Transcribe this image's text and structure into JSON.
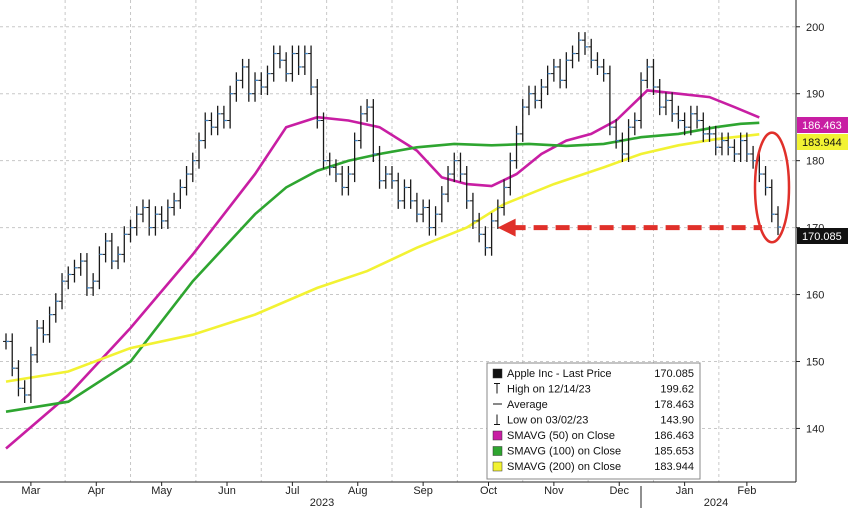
{
  "chart_data": {
    "type": "line",
    "title": "",
    "ylim": [
      132,
      204
    ],
    "y_ticks": [
      140,
      150,
      160,
      170,
      180,
      190,
      200
    ],
    "x_tick_labels": [
      "Mar",
      "Apr",
      "May",
      "Jun",
      "Jul",
      "Aug",
      "Sep",
      "Oct",
      "Nov",
      "Dec",
      "Jan",
      "Feb"
    ],
    "x_year_labels": [
      "2023",
      "2024"
    ],
    "grid": true,
    "legend_position": "bottom-center",
    "series": [
      {
        "name": "Apple Inc - Last Price",
        "color": "#111111",
        "style": "bar",
        "points": [
          [
            0,
            153
          ],
          [
            1,
            149
          ],
          [
            2,
            146
          ],
          [
            3,
            145
          ],
          [
            4,
            151
          ],
          [
            5,
            155
          ],
          [
            6,
            154
          ],
          [
            7,
            157
          ],
          [
            8,
            159
          ],
          [
            9,
            162
          ],
          [
            10,
            163
          ],
          [
            11,
            164
          ],
          [
            12,
            165
          ],
          [
            13,
            161
          ],
          [
            14,
            162
          ],
          [
            15,
            166
          ],
          [
            16,
            168
          ],
          [
            17,
            165
          ],
          [
            18,
            166
          ],
          [
            19,
            169
          ],
          [
            20,
            170
          ],
          [
            21,
            172
          ],
          [
            22,
            173
          ],
          [
            23,
            170
          ],
          [
            24,
            172
          ],
          [
            25,
            171
          ],
          [
            26,
            173
          ],
          [
            27,
            174
          ],
          [
            28,
            176
          ],
          [
            29,
            178
          ],
          [
            30,
            180
          ],
          [
            31,
            183
          ],
          [
            32,
            186
          ],
          [
            33,
            185
          ],
          [
            34,
            187
          ],
          [
            35,
            186
          ],
          [
            36,
            190
          ],
          [
            37,
            192
          ],
          [
            38,
            194
          ],
          [
            39,
            190
          ],
          [
            40,
            192
          ],
          [
            41,
            191
          ],
          [
            42,
            193
          ],
          [
            43,
            196
          ],
          [
            44,
            195
          ],
          [
            45,
            193
          ],
          [
            46,
            196
          ],
          [
            47,
            194
          ],
          [
            48,
            196
          ],
          [
            49,
            191
          ],
          [
            50,
            186
          ],
          [
            51,
            180
          ],
          [
            52,
            179
          ],
          [
            53,
            178
          ],
          [
            54,
            176
          ],
          [
            55,
            178
          ],
          [
            56,
            183
          ],
          [
            57,
            187
          ],
          [
            58,
            188
          ],
          [
            59,
            181
          ],
          [
            60,
            177
          ],
          [
            61,
            178
          ],
          [
            62,
            177
          ],
          [
            63,
            174
          ],
          [
            64,
            176
          ],
          [
            65,
            174
          ],
          [
            66,
            172
          ],
          [
            67,
            173
          ],
          [
            68,
            170
          ],
          [
            69,
            172
          ],
          [
            70,
            175
          ],
          [
            71,
            178
          ],
          [
            72,
            180
          ],
          [
            73,
            178
          ],
          [
            74,
            174
          ],
          [
            75,
            171
          ],
          [
            76,
            169
          ],
          [
            77,
            167
          ],
          [
            78,
            171
          ],
          [
            79,
            173
          ],
          [
            80,
            176
          ],
          [
            81,
            180
          ],
          [
            82,
            184
          ],
          [
            83,
            188
          ],
          [
            84,
            190
          ],
          [
            85,
            189
          ],
          [
            86,
            191
          ],
          [
            87,
            193
          ],
          [
            88,
            194
          ],
          [
            89,
            192
          ],
          [
            90,
            195
          ],
          [
            91,
            196
          ],
          [
            92,
            198
          ],
          [
            93,
            197
          ],
          [
            94,
            195
          ],
          [
            95,
            194
          ],
          [
            96,
            193
          ],
          [
            97,
            185
          ],
          [
            98,
            183
          ],
          [
            99,
            181
          ],
          [
            100,
            185
          ],
          [
            101,
            186
          ],
          [
            102,
            192
          ],
          [
            103,
            194
          ],
          [
            104,
            191
          ],
          [
            105,
            188
          ],
          [
            106,
            189
          ],
          [
            107,
            187
          ],
          [
            108,
            186
          ],
          [
            109,
            185
          ],
          [
            110,
            187
          ],
          [
            111,
            186
          ],
          [
            112,
            184
          ],
          [
            113,
            184
          ],
          [
            114,
            182
          ],
          [
            115,
            183
          ],
          [
            116,
            182
          ],
          [
            117,
            181
          ],
          [
            118,
            183
          ],
          [
            119,
            181
          ],
          [
            120,
            180
          ],
          [
            121,
            178
          ],
          [
            122,
            176
          ],
          [
            123,
            172
          ],
          [
            124,
            170.085
          ]
        ]
      },
      {
        "name": "SMAVG (50) on Close",
        "color": "#c81ea3",
        "points": [
          [
            0,
            137
          ],
          [
            10,
            145
          ],
          [
            20,
            155
          ],
          [
            30,
            166
          ],
          [
            40,
            178
          ],
          [
            45,
            185
          ],
          [
            50,
            186.5
          ],
          [
            55,
            186
          ],
          [
            60,
            185
          ],
          [
            66,
            181.5
          ],
          [
            70,
            177.5
          ],
          [
            74,
            176.5
          ],
          [
            78,
            176.2
          ],
          [
            82,
            178
          ],
          [
            86,
            181
          ],
          [
            90,
            183
          ],
          [
            94,
            184
          ],
          [
            98,
            186
          ],
          [
            103,
            190.5
          ],
          [
            108,
            190
          ],
          [
            113,
            189.5
          ],
          [
            117,
            188
          ],
          [
            121,
            186.463
          ]
        ]
      },
      {
        "name": "SMAVG (100) on Close",
        "color": "#2ea530",
        "points": [
          [
            0,
            142.5
          ],
          [
            10,
            144
          ],
          [
            20,
            150
          ],
          [
            30,
            162
          ],
          [
            40,
            172
          ],
          [
            45,
            176
          ],
          [
            50,
            178.5
          ],
          [
            55,
            180
          ],
          [
            60,
            181
          ],
          [
            66,
            182
          ],
          [
            72,
            182.5
          ],
          [
            78,
            182.3
          ],
          [
            84,
            182.5
          ],
          [
            90,
            182.2
          ],
          [
            96,
            182.5
          ],
          [
            102,
            183.5
          ],
          [
            108,
            184
          ],
          [
            114,
            185
          ],
          [
            118,
            185.5
          ],
          [
            121,
            185.653
          ]
        ]
      },
      {
        "name": "SMAVG (200) on Close",
        "color": "#f2f233",
        "points": [
          [
            0,
            147
          ],
          [
            10,
            148.5
          ],
          [
            20,
            152
          ],
          [
            30,
            154
          ],
          [
            40,
            157
          ],
          [
            50,
            161
          ],
          [
            58,
            163.5
          ],
          [
            66,
            167
          ],
          [
            74,
            170
          ],
          [
            80,
            173.5
          ],
          [
            88,
            176.5
          ],
          [
            96,
            179
          ],
          [
            102,
            181
          ],
          [
            108,
            182.3
          ],
          [
            114,
            183.2
          ],
          [
            121,
            183.944
          ]
        ]
      }
    ],
    "summary_stats": {
      "high": {
        "label": "High on 12/14/23",
        "value": "199.62"
      },
      "average": {
        "label": "Average",
        "value": "178.463"
      },
      "low": {
        "label": "Low on 03/02/23",
        "value": "143.90"
      }
    },
    "last_value_badges": [
      {
        "value": "186.463",
        "bg": "#c81ea3",
        "fg": "#ffffff"
      },
      {
        "value": "183.944",
        "bg": "#f2f233",
        "fg": "#111111"
      },
      {
        "value": "170.085",
        "bg": "#111111",
        "fg": "#ffffff"
      }
    ],
    "annotations": {
      "arrow_color": "#e0302a",
      "circle_color": "#e0302a"
    }
  }
}
